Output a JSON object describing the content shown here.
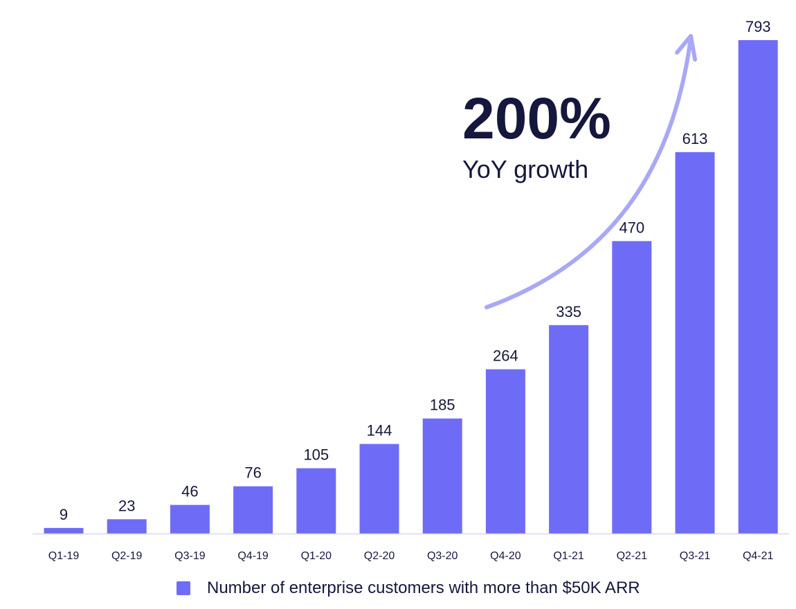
{
  "chart_data": {
    "type": "bar",
    "categories": [
      "Q1-19",
      "Q2-19",
      "Q3-19",
      "Q4-19",
      "Q1-20",
      "Q2-20",
      "Q3-20",
      "Q4-20",
      "Q1-21",
      "Q2-21",
      "Q3-21",
      "Q4-21"
    ],
    "series": [
      {
        "name": "Number of enterprise customers with more than $50K ARR",
        "values": [
          9,
          23,
          46,
          76,
          105,
          144,
          185,
          264,
          335,
          470,
          613,
          793
        ],
        "color": "#6e6cf6"
      }
    ],
    "data_labels": [
      "9",
      "23",
      "46",
      "76",
      "105",
      "144",
      "185",
      "264",
      "335",
      "470",
      "613",
      "793"
    ],
    "ylim": [
      0,
      793
    ],
    "grid": false,
    "legend_position": "bottom",
    "annotation": {
      "headline": "200%",
      "subtext": "YoY growth",
      "arrow_color": "#a9a8f5"
    },
    "axis_color": "#d8d8e8",
    "text_color": "#15173d"
  }
}
